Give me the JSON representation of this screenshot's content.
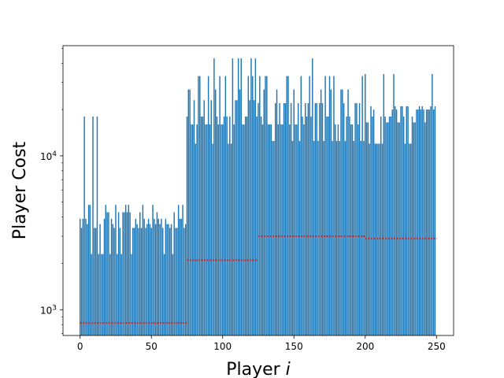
{
  "chart_data": {
    "type": "bar",
    "xlabel_text": "Player ",
    "xlabel_var": "i",
    "ylabel": "Player Cost",
    "yscale": "log",
    "xlim": [
      -12,
      262
    ],
    "ylim": [
      680,
      52000
    ],
    "bar_color": "#1f77b4",
    "group_mean_color": "#d62728",
    "x_ticks": [
      {
        "value": 0,
        "label": "0"
      },
      {
        "value": 50,
        "label": "50"
      },
      {
        "value": 100,
        "label": "100"
      },
      {
        "value": 150,
        "label": "150"
      },
      {
        "value": 200,
        "label": "200"
      },
      {
        "value": 250,
        "label": "250"
      }
    ],
    "y_ticks": [
      {
        "value": 1000,
        "base": "10",
        "exp": "3"
      },
      {
        "value": 10000,
        "base": "10",
        "exp": "4"
      }
    ],
    "groups": [
      {
        "start": 0,
        "end": 74,
        "levels": [
          2300,
          3400,
          3600,
          3900,
          4300,
          4800,
          18000
        ],
        "weights": [
          2,
          4,
          3,
          3,
          2,
          2,
          1
        ],
        "mean": 820
      },
      {
        "start": 75,
        "end": 124,
        "levels": [
          12000,
          16000,
          18000,
          23000,
          27000,
          33000,
          43000
        ],
        "weights": [
          2,
          3,
          3,
          2,
          2,
          2,
          2
        ],
        "mean": 2100
      },
      {
        "start": 125,
        "end": 199,
        "levels": [
          12500,
          16000,
          18000,
          22000,
          27000,
          33000,
          43000
        ],
        "weights": [
          3,
          3,
          3,
          3,
          2,
          2,
          1
        ],
        "mean": 3000
      },
      {
        "start": 200,
        "end": 249,
        "levels": [
          12000,
          16500,
          18000,
          20000,
          21000,
          30000,
          34000
        ],
        "weights": [
          2,
          3,
          3,
          3,
          3,
          1,
          1
        ],
        "mean": 2900
      }
    ]
  }
}
